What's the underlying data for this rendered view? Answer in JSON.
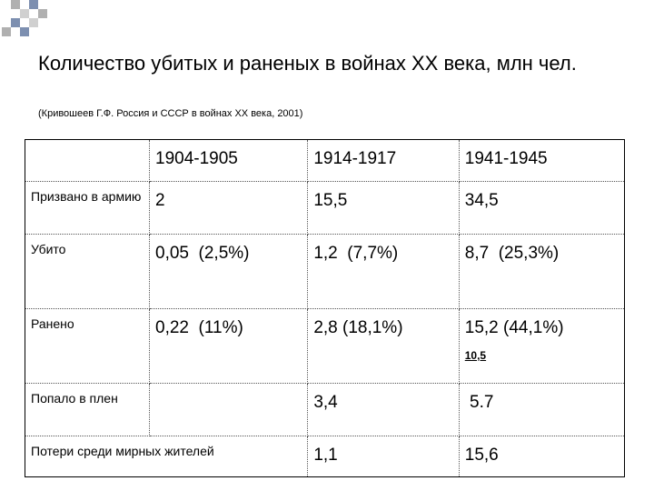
{
  "title": "Количество убитых и раненых в войнах XX века, млн чел.",
  "source": "(Кривошеев Г.Ф. Россия и СССР в войнах XX века, 2001)",
  "table": {
    "header": [
      "1904-1905",
      "1914-1917",
      "1941-1945"
    ],
    "rows": [
      {
        "label": "Призвано в армию",
        "cells": [
          "2",
          "15,5",
          "34,5"
        ]
      },
      {
        "label": "Убито",
        "cells": [
          "0,05  (2,5%)",
          "1,2  (7,7%)",
          "8,7  (25,3%)"
        ]
      },
      {
        "label": "Ранено",
        "cells": [
          "0,22  (11%)",
          "2,8 (18,1%)",
          "15,2 (44,1%)"
        ],
        "note": "10,5"
      },
      {
        "label": "Попало в плен",
        "cells": [
          null,
          "3,4",
          " 5.7"
        ]
      },
      {
        "label": "Потери среди мирных жителей",
        "cells": [
          null,
          "1,1",
          "15,6"
        ]
      }
    ]
  }
}
